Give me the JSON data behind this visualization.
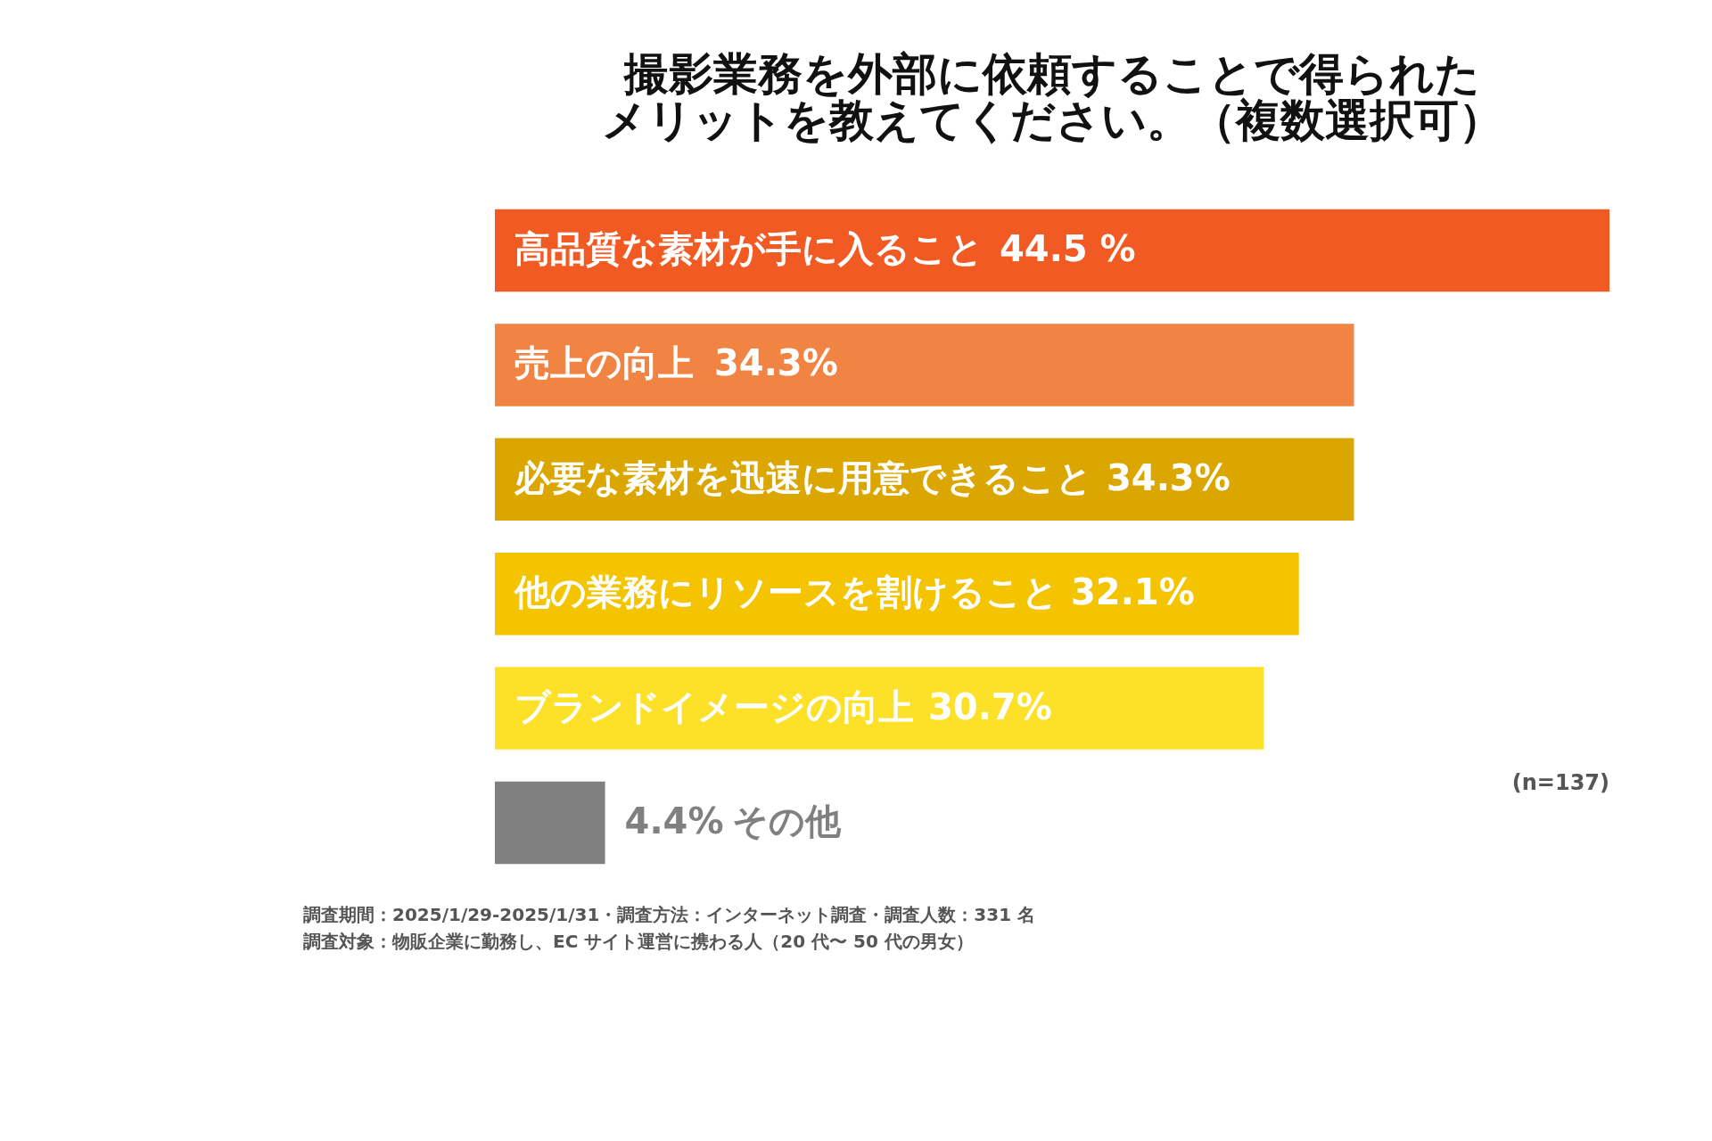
{
  "chart_data": {
    "type": "bar",
    "orientation": "horizontal",
    "title": "撮影業務を外部に依頼することで得られたメリットを教えてください。（複数選択可）",
    "categories": [
      "高品質な素材が手に入ること",
      "売上の向上",
      "必要な素材を迅速に用意できること",
      "他の業務にリソースを割けること",
      "ブランドイメージの向上",
      "その他"
    ],
    "values": [
      44.5,
      34.3,
      34.3,
      32.1,
      30.7,
      4.4
    ],
    "colors": [
      "#f15a22",
      "#f18443",
      "#dba600",
      "#f4c400",
      "#fde128",
      "#808080"
    ],
    "value_labels": [
      "44.5 %",
      "34.3%",
      "34.3%",
      "32.1%",
      "30.7%",
      "4.4%"
    ],
    "annotations": [
      "(n=137)",
      "調査期間：2025/1/29-2025/1/31・調査方法：インターネット調査・調査人数：331 名",
      "調査対象：物販企業に勤務し、EC サイト運営に携わる人（20 代〜 50 代の男女）"
    ]
  }
}
